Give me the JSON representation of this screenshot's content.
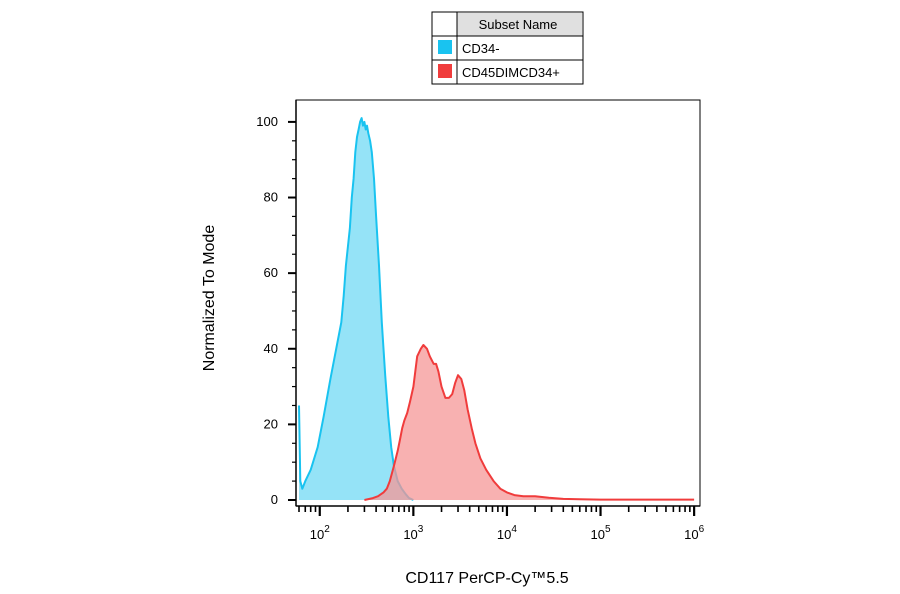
{
  "chart_data": {
    "type": "area",
    "xlabel": "CD117  PerCP-Cy™5.5",
    "ylabel": "Normalized To Mode",
    "x_scale": "log",
    "xlim": [
      60,
      1100000
    ],
    "ylim": [
      0,
      105
    ],
    "grid": false,
    "x_major_ticks": [
      {
        "value": 100,
        "base": "10",
        "exp": "2"
      },
      {
        "value": 1000,
        "base": "10",
        "exp": "3"
      },
      {
        "value": 10000,
        "base": "10",
        "exp": "4"
      },
      {
        "value": 100000,
        "base": "10",
        "exp": "5"
      },
      {
        "value": 1000000,
        "base": "10",
        "exp": "6"
      }
    ],
    "y_ticks": [
      0,
      20,
      40,
      60,
      80,
      100
    ],
    "legend": {
      "title": "Subset Name",
      "position": "top-center",
      "entries": [
        {
          "name": "CD34-",
          "color": "#19c3f0"
        },
        {
          "name": "CD45DIMCD34+",
          "color": "#f03c3c"
        }
      ]
    },
    "series": [
      {
        "name": "CD34-",
        "color": "#19c3f0",
        "fill": "#8fe2f7",
        "x": [
          60,
          62,
          65,
          70,
          80,
          95,
          110,
          130,
          150,
          170,
          180,
          190,
          200,
          210,
          220,
          230,
          240,
          250,
          260,
          270,
          280,
          290,
          300,
          310,
          320,
          330,
          345,
          360,
          380,
          400,
          430,
          460,
          500,
          540,
          580,
          620,
          680,
          750,
          830,
          900,
          1000
        ],
        "y": [
          25,
          5,
          3,
          5,
          8,
          14,
          22,
          32,
          40,
          47,
          54,
          62,
          67,
          72,
          80,
          85,
          92,
          96,
          98,
          100,
          101,
          99,
          100,
          98,
          99,
          97,
          95,
          92,
          85,
          75,
          62,
          47,
          33,
          22,
          14,
          9,
          5,
          3,
          1.5,
          0.5,
          0
        ]
      },
      {
        "name": "CD45DIMCD34+",
        "color": "#f03c3c",
        "fill": "#f69797",
        "x": [
          300,
          370,
          420,
          480,
          520,
          560,
          620,
          680,
          720,
          760,
          800,
          860,
          920,
          1000,
          1050,
          1100,
          1200,
          1280,
          1400,
          1500,
          1650,
          1750,
          1850,
          2000,
          2200,
          2400,
          2600,
          2800,
          3000,
          3250,
          3500,
          3800,
          4200,
          4600,
          5200,
          6000,
          7200,
          8500,
          10000,
          12000,
          15000,
          20000,
          28000,
          40000,
          60000,
          100000,
          200000,
          400000,
          700000,
          1000000
        ],
        "y": [
          0,
          0.5,
          1,
          2,
          3,
          5,
          9,
          13,
          16,
          19,
          21,
          23,
          26,
          30,
          34,
          38,
          40,
          41,
          40,
          38,
          36,
          36,
          34,
          30,
          27,
          27,
          28,
          31,
          33,
          32,
          29,
          24,
          19,
          15,
          11,
          8,
          5,
          3,
          2,
          1.3,
          1,
          1,
          0.6,
          0.3,
          0.2,
          0.1,
          0.1,
          0.1,
          0.1,
          0.1
        ]
      }
    ]
  }
}
